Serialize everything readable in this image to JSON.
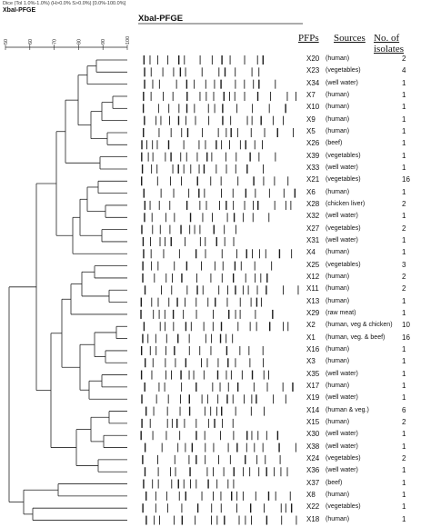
{
  "header": {
    "dice_text": "Dice (Tol 1.0%-1.0%) (H>0.0% S>0.0%) [0.0%-100.0%]",
    "left_title": "XbaI-PFGE",
    "main_title": "XbaI-PFGE",
    "scale_ticks": [
      "50",
      "60",
      "70",
      "80",
      "90",
      "100"
    ]
  },
  "columns": {
    "pfp": "PFPs",
    "sources": "Sources",
    "isolates": "No. of isolates"
  },
  "rows": [
    {
      "pfp": "X20",
      "source": "(human)",
      "isolates": "2"
    },
    {
      "pfp": "X23",
      "source": "(vegetables)",
      "isolates": "4"
    },
    {
      "pfp": "X34",
      "source": "(well water)",
      "isolates": "1"
    },
    {
      "pfp": "X7",
      "source": "(human)",
      "isolates": "1"
    },
    {
      "pfp": "X10",
      "source": "(human)",
      "isolates": "1"
    },
    {
      "pfp": "X9",
      "source": "(human)",
      "isolates": "1"
    },
    {
      "pfp": "X5",
      "source": "(human)",
      "isolates": "1"
    },
    {
      "pfp": "X26",
      "source": "(beef)",
      "isolates": "1"
    },
    {
      "pfp": "X39",
      "source": "(vegetables)",
      "isolates": "1"
    },
    {
      "pfp": "X33",
      "source": "(well water)",
      "isolates": "1"
    },
    {
      "pfp": "X21",
      "source": "(vegetables)",
      "isolates": "16"
    },
    {
      "pfp": "X6",
      "source": "(human)",
      "isolates": "1"
    },
    {
      "pfp": "X28",
      "source": "(chicken liver)",
      "isolates": "2"
    },
    {
      "pfp": "X32",
      "source": "(well water)",
      "isolates": "1"
    },
    {
      "pfp": "X27",
      "source": "(vegetables)",
      "isolates": "2"
    },
    {
      "pfp": "X31",
      "source": "(well water)",
      "isolates": "1"
    },
    {
      "pfp": "X4",
      "source": "(human)",
      "isolates": "1"
    },
    {
      "pfp": "X25",
      "source": "(vegetables)",
      "isolates": "3"
    },
    {
      "pfp": "X12",
      "source": "(human)",
      "isolates": "2"
    },
    {
      "pfp": "X11",
      "source": "(human)",
      "isolates": "2"
    },
    {
      "pfp": "X13",
      "source": "(human)",
      "isolates": "1"
    },
    {
      "pfp": "X29",
      "source": "(raw meat)",
      "isolates": "1"
    },
    {
      "pfp": "X2",
      "source": "(human, veg & chicken)",
      "isolates": "10"
    },
    {
      "pfp": "X1",
      "source": "(human, veg. & beef)",
      "isolates": "16"
    },
    {
      "pfp": "X16",
      "source": "(human)",
      "isolates": "1"
    },
    {
      "pfp": "X3",
      "source": "(human)",
      "isolates": "1"
    },
    {
      "pfp": "X35",
      "source": "(well water)",
      "isolates": "1"
    },
    {
      "pfp": "X17",
      "source": "(human)",
      "isolates": "1"
    },
    {
      "pfp": "X19",
      "source": "(well water)",
      "isolates": "1"
    },
    {
      "pfp": "X14",
      "source": "(human & veg.)",
      "isolates": "6"
    },
    {
      "pfp": "X15",
      "source": "(human)",
      "isolates": "2"
    },
    {
      "pfp": "X30",
      "source": "(well water)",
      "isolates": "1"
    },
    {
      "pfp": "X38",
      "source": "(well water)",
      "isolates": "1"
    },
    {
      "pfp": "X24",
      "source": "(vegetables)",
      "isolates": "2"
    },
    {
      "pfp": "X36",
      "source": "(well water)",
      "isolates": "1"
    },
    {
      "pfp": "X37",
      "source": "(beef)",
      "isolates": "1"
    },
    {
      "pfp": "X8",
      "source": "(human)",
      "isolates": "1"
    },
    {
      "pfp": "X22",
      "source": "(vegetables)",
      "isolates": "1"
    },
    {
      "pfp": "X18",
      "source": "(human)",
      "isolates": "1"
    }
  ]
}
